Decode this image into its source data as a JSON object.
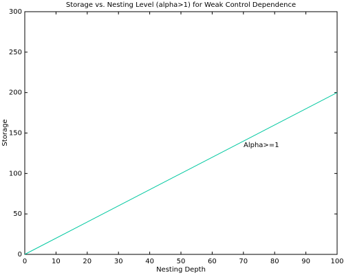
{
  "chart_data": {
    "type": "line",
    "title": "Storage vs. Nesting Level (alpha>1) for Weak Control Dependence",
    "x_label": "Nesting Depth",
    "y_label": "Storage",
    "x": [
      0,
      100
    ],
    "series": [
      {
        "name": "Alpha>=1",
        "color": "#00c8a0",
        "values": [
          0,
          200
        ]
      }
    ],
    "annotation": "Alpha>=1",
    "xlim": [
      0,
      100
    ],
    "xticks": [
      0,
      10,
      20,
      30,
      40,
      50,
      60,
      70,
      80,
      90,
      100
    ],
    "ylim": [
      0,
      300
    ],
    "yticks": [
      0,
      50,
      100,
      150,
      200,
      250,
      300
    ],
    "grid": false
  }
}
